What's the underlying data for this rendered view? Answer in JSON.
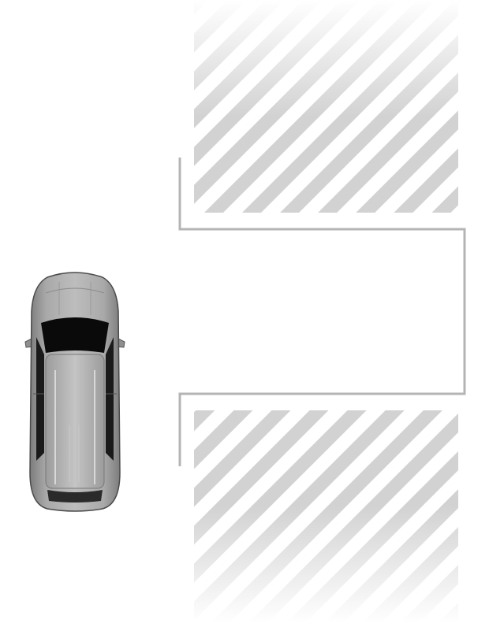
{
  "diagram": {
    "kind": "parking-illustration",
    "vehicle": {
      "view": "top-down",
      "body_color": "#a9a9a9",
      "roof_color": "#b3b3b3",
      "glass_color": "#0a0a0a"
    },
    "parking_space": {
      "state": "empty",
      "outline_color": "#b4b4b4"
    },
    "occupied_zones": [
      {
        "name": "upper",
        "pattern": "diagonal-stripes"
      },
      {
        "name": "lower",
        "pattern": "diagonal-stripes"
      }
    ],
    "colors": {
      "stripe": "#d2d2d2",
      "background": "#ffffff"
    }
  }
}
